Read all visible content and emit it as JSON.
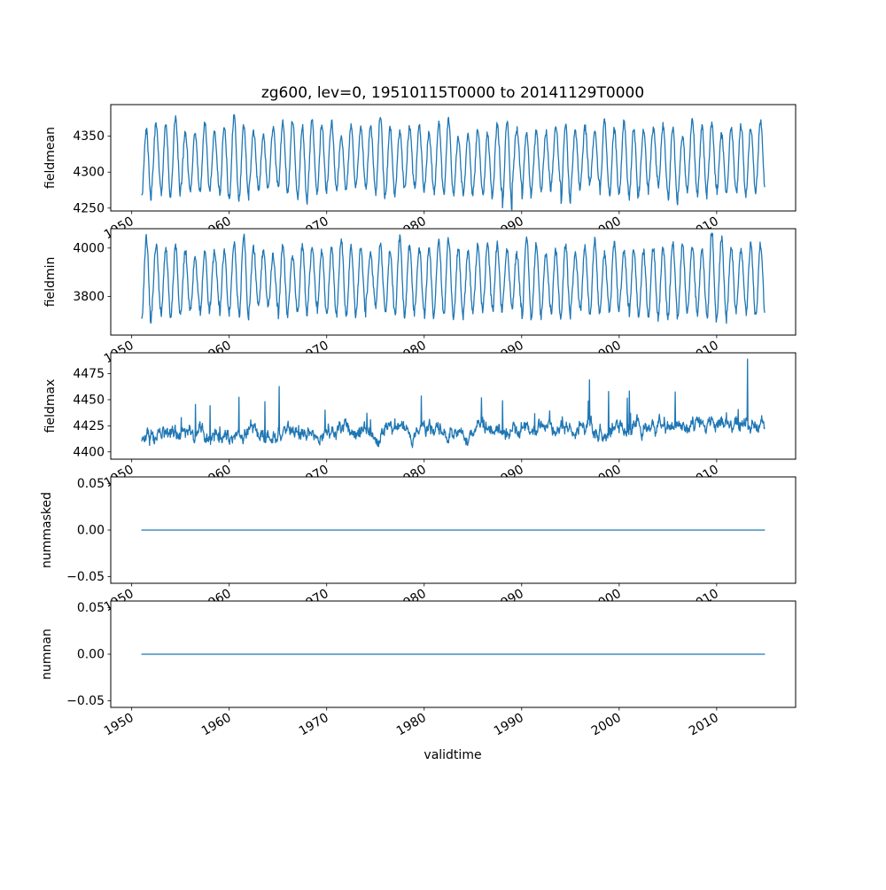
{
  "chart_data": {
    "type": "line",
    "title": "zg600, lev=0, 19510115T0000 to 20141129T0000",
    "xlabel": "validtime",
    "line_color": "#1f77b4",
    "axis_color": "#000000",
    "grid": false,
    "legend": "none",
    "xlim": [
      1947.85,
      2018.1
    ],
    "x_ticks": [
      1950,
      1960,
      1970,
      1980,
      1990,
      2000,
      2010
    ],
    "x_tick_labels": [
      "1950",
      "1960",
      "1970",
      "1980",
      "1990",
      "2000",
      "2010"
    ],
    "x_start": 1951.04,
    "x_end": 2014.91,
    "subplots": [
      {
        "ylabel": "fieldmean",
        "yticks": [
          4250,
          4300,
          4350
        ],
        "ytick_labels": [
          "4250",
          "4300",
          "4350"
        ],
        "ylim": [
          4246,
          4394
        ],
        "description": "Annual oscillation, minima ~4255-4300, maxima ~4345-4385",
        "series_spec": {
          "kind": "seasonal",
          "mean": 4317,
          "mean_jitter": 8,
          "amp_min": 36,
          "amp_max": 54,
          "amp_boost": 8,
          "noise": 5,
          "seed": 3
        }
      },
      {
        "ylabel": "fieldmin",
        "yticks": [
          3800,
          4000
        ],
        "ytick_labels": [
          "3800",
          "4000"
        ],
        "ylim": [
          3640,
          4080
        ],
        "description": "Annual oscillation, minima ~3660-3780, maxima ~3950-4060",
        "series_spec": {
          "kind": "seasonal",
          "mean": 3868,
          "mean_jitter": 15,
          "amp_min": 100,
          "amp_max": 160,
          "amp_boost": 30,
          "noise": 16,
          "seed": 5
        }
      },
      {
        "ylabel": "fieldmax",
        "yticks": [
          4400,
          4425,
          4450,
          4475
        ],
        "ytick_labels": [
          "4400",
          "4425",
          "4450",
          "4475"
        ],
        "ylim": [
          4393,
          4495
        ],
        "description": "Noisy baseline ~4405-4440 with upward spikes to ~4465, slight upward trend, large spike ~4490 near 2013",
        "series_spec": {
          "kind": "noisy",
          "base": 4415,
          "trend_per_year": 0.18,
          "ar": 0.85,
          "ar_noise": 4,
          "fast_noise": 3,
          "spike_prob": 0.02,
          "spike_base": 8,
          "spike_max": 35,
          "floor": 4399,
          "final_spike": 4489,
          "final_spike_t": 2013.15,
          "seed": 7
        }
      },
      {
        "ylabel": "nummasked",
        "yticks": [
          -0.05,
          0,
          0.05
        ],
        "ytick_labels": [
          "−0.05",
          "0.00",
          "0.05"
        ],
        "ylim": [
          -0.057,
          0.057
        ],
        "description": "Constant zero line",
        "series_spec": {
          "kind": "constant",
          "value": 0
        }
      },
      {
        "ylabel": "numnan",
        "yticks": [
          -0.05,
          0,
          0.05
        ],
        "ytick_labels": [
          "−0.05",
          "0.00",
          "0.05"
        ],
        "ylim": [
          -0.057,
          0.057
        ],
        "description": "Constant zero line",
        "series_spec": {
          "kind": "constant",
          "value": 0
        }
      }
    ]
  }
}
